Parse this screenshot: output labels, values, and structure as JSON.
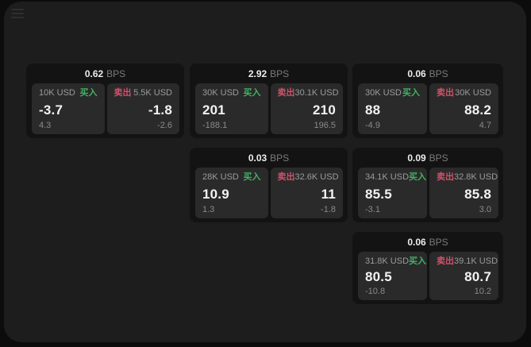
{
  "colors": {
    "app_background": "#1d1d1d",
    "card_background": "#131313",
    "panel_background": "#2a2a2a",
    "buy_green": "#43b065",
    "sell_red": "#d2506a"
  },
  "menu_icon": "hamburger-menu",
  "cards": [
    {
      "col": 0,
      "row": 0,
      "bps_value": "0.62",
      "bps_label": "BPS",
      "buy": {
        "amount": "10K USD",
        "side_label": "买入",
        "price": "-3.7",
        "delta": "4.3"
      },
      "sell": {
        "amount": "5.5K USD",
        "side_label": "卖出",
        "price": "-1.8",
        "delta": "-2.6"
      }
    },
    {
      "col": 1,
      "row": 0,
      "bps_value": "2.92",
      "bps_label": "BPS",
      "buy": {
        "amount": "30K USD",
        "side_label": "买入",
        "price": "201",
        "delta": "-188.1"
      },
      "sell": {
        "amount": "30.1K USD",
        "side_label": "卖出",
        "price": "210",
        "delta": "196.5"
      }
    },
    {
      "col": 2,
      "row": 0,
      "bps_value": "0.06",
      "bps_label": "BPS",
      "buy": {
        "amount": "30K USD",
        "side_label": "买入",
        "price": "88",
        "delta": "-4.9"
      },
      "sell": {
        "amount": "30K USD",
        "side_label": "卖出",
        "price": "88.2",
        "delta": "4.7"
      }
    },
    {
      "col": 1,
      "row": 1,
      "bps_value": "0.03",
      "bps_label": "BPS",
      "buy": {
        "amount": "28K USD",
        "side_label": "买入",
        "price": "10.9",
        "delta": "1.3"
      },
      "sell": {
        "amount": "32.6K USD",
        "side_label": "卖出",
        "price": "11",
        "delta": "-1.8"
      }
    },
    {
      "col": 2,
      "row": 1,
      "bps_value": "0.09",
      "bps_label": "BPS",
      "buy": {
        "amount": "34.1K USD",
        "side_label": "买入",
        "price": "85.5",
        "delta": "-3.1"
      },
      "sell": {
        "amount": "32.8K USD",
        "side_label": "卖出",
        "price": "85.8",
        "delta": "3.0"
      }
    },
    {
      "col": 2,
      "row": 2,
      "bps_value": "0.06",
      "bps_label": "BPS",
      "buy": {
        "amount": "31.8K USD",
        "side_label": "买入",
        "price": "80.5",
        "delta": "-10.8"
      },
      "sell": {
        "amount": "39.1K USD",
        "side_label": "卖出",
        "price": "80.7",
        "delta": "10.2"
      }
    }
  ]
}
